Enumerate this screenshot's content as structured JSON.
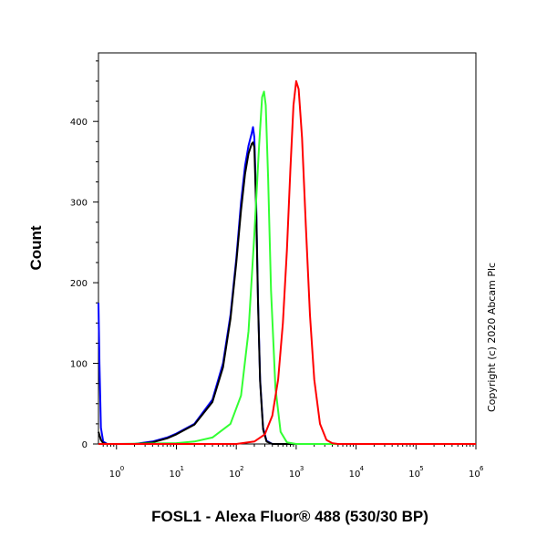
{
  "chart_data": {
    "type": "line",
    "title": "",
    "xlabel": "FOSL1 - Alexa Fluor® 488 (530/30 BP)",
    "ylabel": "Count",
    "x_scale": "log",
    "xlim": [
      0.5,
      1000000
    ],
    "ylim": [
      0,
      485
    ],
    "grid": false,
    "x_tick_labels": [
      {
        "base": "10",
        "exp": "0",
        "value": 1
      },
      {
        "base": "10",
        "exp": "1",
        "value": 10
      },
      {
        "base": "10",
        "exp": "2",
        "value": 100
      },
      {
        "base": "10",
        "exp": "3",
        "value": 1000
      },
      {
        "base": "10",
        "exp": "4",
        "value": 10000
      },
      {
        "base": "10",
        "exp": "5",
        "value": 100000
      },
      {
        "base": "10",
        "exp": "6",
        "value": 1000000
      }
    ],
    "y_ticks": [
      0,
      100,
      200,
      300,
      400
    ],
    "series": [
      {
        "color": "#0000ff",
        "x": [
          0.5,
          0.52,
          0.55,
          0.6,
          0.7,
          1,
          2,
          4,
          7,
          10,
          20,
          40,
          60,
          80,
          100,
          120,
          140,
          160,
          180,
          190,
          200,
          215,
          230,
          250,
          280,
          320,
          400,
          600,
          1000,
          1000000
        ],
        "y": [
          175,
          100,
          20,
          3,
          0,
          0,
          0,
          3,
          8,
          13,
          25,
          55,
          100,
          160,
          230,
          300,
          345,
          370,
          385,
          393,
          380,
          300,
          180,
          80,
          20,
          4,
          0,
          0,
          0,
          0
        ]
      },
      {
        "color": "#000000",
        "x": [
          0.5,
          0.55,
          0.6,
          0.7,
          1,
          2,
          4,
          7,
          10,
          20,
          40,
          60,
          80,
          100,
          120,
          140,
          160,
          180,
          190,
          200,
          215,
          230,
          250,
          280,
          320,
          400,
          600,
          1000,
          1000000
        ],
        "y": [
          15,
          5,
          1,
          0,
          0,
          0,
          2,
          7,
          12,
          24,
          52,
          95,
          155,
          225,
          290,
          335,
          360,
          372,
          374,
          368,
          290,
          175,
          78,
          18,
          3,
          0,
          0,
          0,
          0
        ]
      },
      {
        "color": "#33ff33",
        "x": [
          0.5,
          1,
          10,
          20,
          40,
          80,
          120,
          160,
          200,
          240,
          270,
          290,
          310,
          340,
          380,
          450,
          550,
          700,
          1000,
          1000000
        ],
        "y": [
          0,
          0,
          1,
          3,
          8,
          25,
          60,
          140,
          260,
          370,
          430,
          437,
          420,
          330,
          190,
          70,
          15,
          2,
          0,
          0
        ]
      },
      {
        "color": "#ff0000",
        "x": [
          0.5,
          10,
          100,
          200,
          300,
          400,
          500,
          600,
          700,
          800,
          900,
          1000,
          1100,
          1250,
          1450,
          1700,
          2000,
          2500,
          3200,
          4000,
          5000,
          1000000
        ],
        "y": [
          0,
          0,
          0,
          3,
          12,
          35,
          80,
          150,
          240,
          340,
          420,
          450,
          440,
          380,
          270,
          160,
          80,
          25,
          5,
          1,
          0,
          0
        ]
      }
    ]
  },
  "copyright": "Copyright (c) 2020 Abcam Plc"
}
